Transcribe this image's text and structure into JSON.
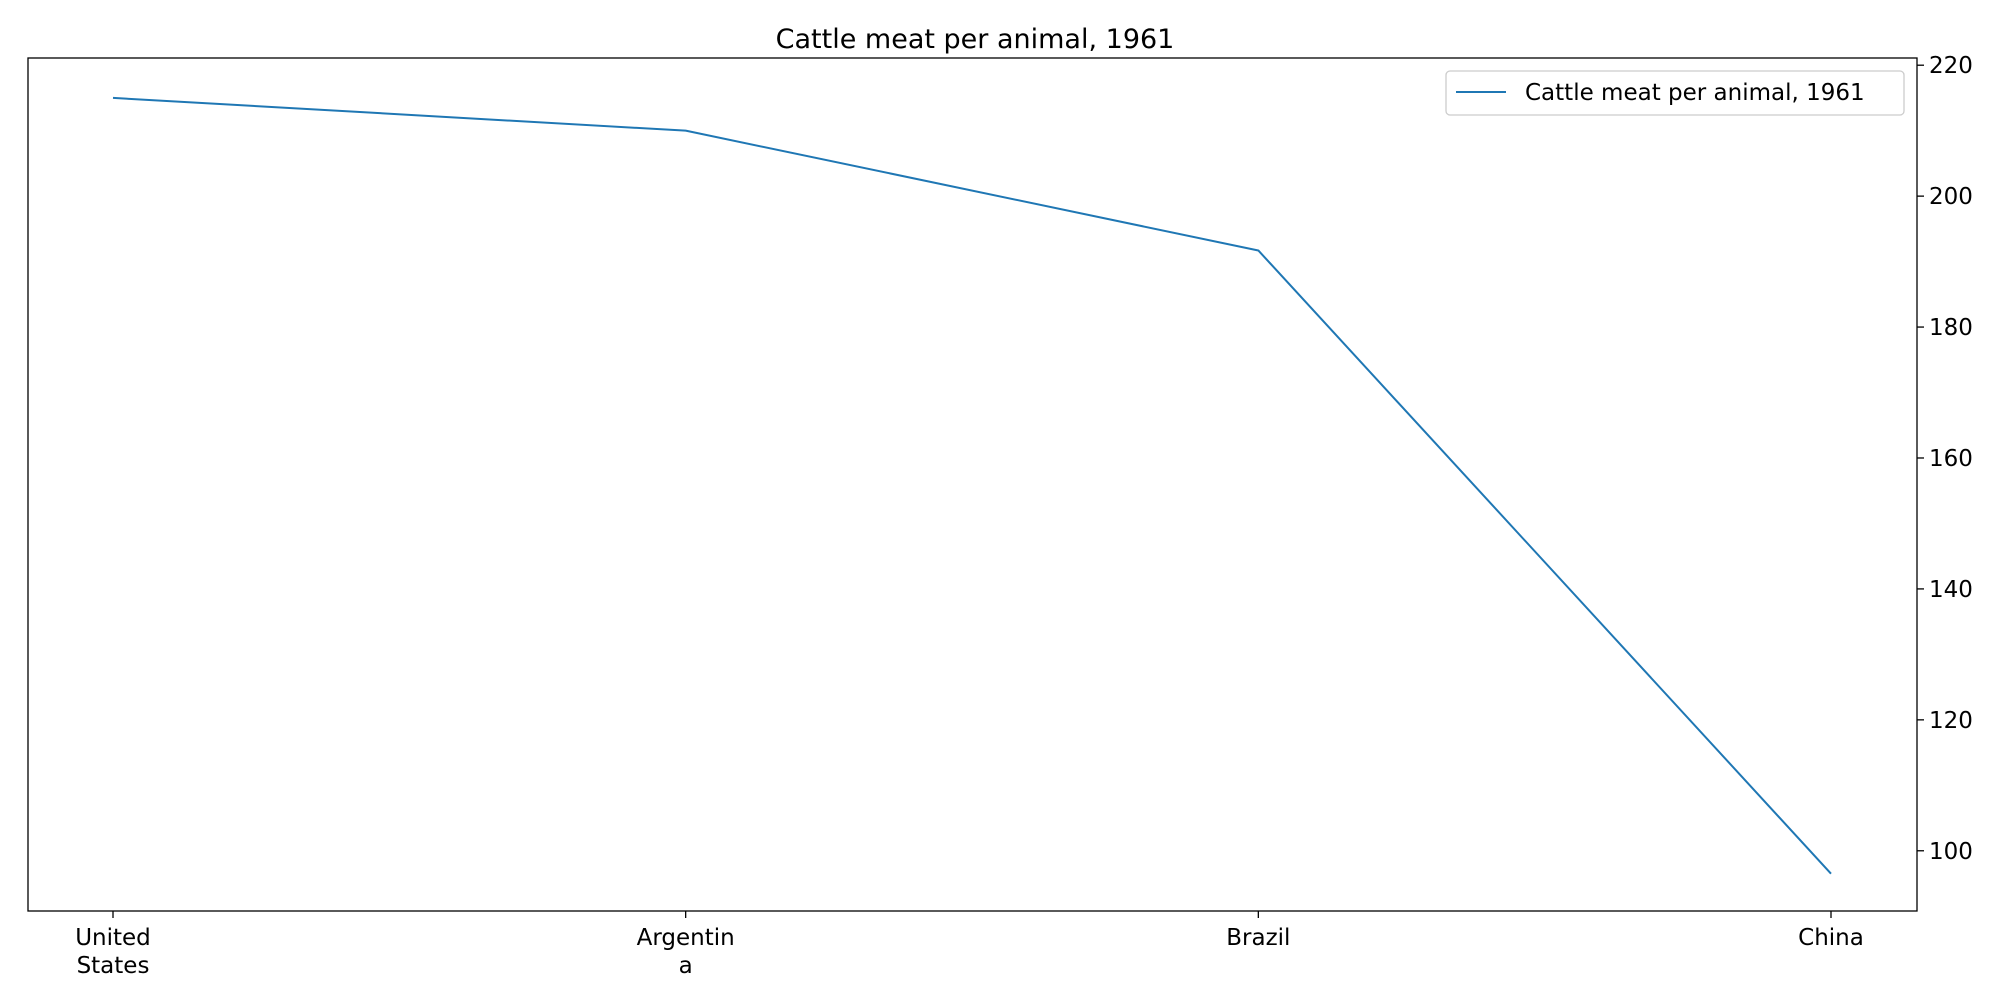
{
  "chart_data": {
    "type": "line",
    "title": "Cattle meat per animal, 1961",
    "categories": [
      "United States",
      "Argentina",
      "Brazil",
      "China"
    ],
    "category_label_lines": [
      [
        "United",
        "States"
      ],
      [
        "Argentin",
        "a"
      ],
      [
        "Brazil"
      ],
      [
        "China"
      ]
    ],
    "series": [
      {
        "name": "Cattle meat per animal, 1961",
        "values": [
          215,
          210,
          191.7,
          96.5
        ],
        "color": "#1f77b4"
      }
    ],
    "xlabel": "",
    "ylabel": "",
    "ylim": [
      90.8,
      221.1
    ],
    "yticks": [
      100,
      120,
      140,
      160,
      180,
      200,
      220
    ],
    "y_axis_side": "right",
    "grid": false,
    "legend_position": "top-right"
  }
}
